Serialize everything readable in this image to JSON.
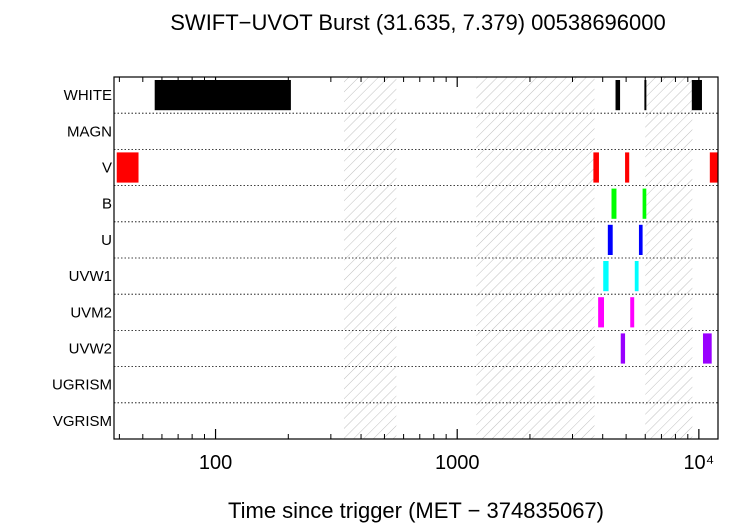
{
  "chart_data": {
    "type": "timeline",
    "title": "SWIFT−UVOT Burst (31.635, 7.379) 00538696000",
    "xlabel": "Time since trigger (MET − 374835067)",
    "xscale": "log",
    "xlim": [
      38,
      12000
    ],
    "x_ticks": [
      {
        "value": 100,
        "label": "100"
      },
      {
        "value": 1000,
        "label": "1000"
      },
      {
        "value": 10000,
        "label": "10⁴"
      }
    ],
    "filters": [
      "WHITE",
      "MAGN",
      "V",
      "B",
      "U",
      "UVW1",
      "UVM2",
      "UVW2",
      "UGRISM",
      "VGRISM"
    ],
    "gaps": [
      [
        340,
        560
      ],
      [
        1200,
        3700
      ],
      [
        6000,
        9400
      ]
    ],
    "exposures": [
      {
        "filter": "WHITE",
        "start": 56,
        "end": 205,
        "color": "#000000"
      },
      {
        "filter": "WHITE",
        "start": 4520,
        "end": 4720,
        "color": "#000000"
      },
      {
        "filter": "WHITE",
        "start": 5950,
        "end": 6050,
        "color": "#000000"
      },
      {
        "filter": "WHITE",
        "start": 9350,
        "end": 10300,
        "color": "#000000"
      },
      {
        "filter": "V",
        "start": 39,
        "end": 48,
        "color": "#ff0000"
      },
      {
        "filter": "V",
        "start": 3660,
        "end": 3860,
        "color": "#ff0000"
      },
      {
        "filter": "V",
        "start": 4950,
        "end": 5150,
        "color": "#ff0000"
      },
      {
        "filter": "V",
        "start": 11100,
        "end": 12000,
        "color": "#ff0000"
      },
      {
        "filter": "B",
        "start": 4350,
        "end": 4560,
        "color": "#00ff00"
      },
      {
        "filter": "B",
        "start": 5850,
        "end": 6060,
        "color": "#00ff00"
      },
      {
        "filter": "U",
        "start": 4200,
        "end": 4400,
        "color": "#0000ff"
      },
      {
        "filter": "U",
        "start": 5650,
        "end": 5850,
        "color": "#0000ff"
      },
      {
        "filter": "UVW1",
        "start": 4020,
        "end": 4230,
        "color": "#00ffff"
      },
      {
        "filter": "UVW1",
        "start": 5430,
        "end": 5630,
        "color": "#00ffff"
      },
      {
        "filter": "UVM2",
        "start": 3830,
        "end": 4050,
        "color": "#ff00ff"
      },
      {
        "filter": "UVM2",
        "start": 5200,
        "end": 5400,
        "color": "#ff00ff"
      },
      {
        "filter": "UVW2",
        "start": 4750,
        "end": 4950,
        "color": "#9900ff"
      },
      {
        "filter": "UVW2",
        "start": 10400,
        "end": 11300,
        "color": "#9900ff"
      }
    ]
  }
}
